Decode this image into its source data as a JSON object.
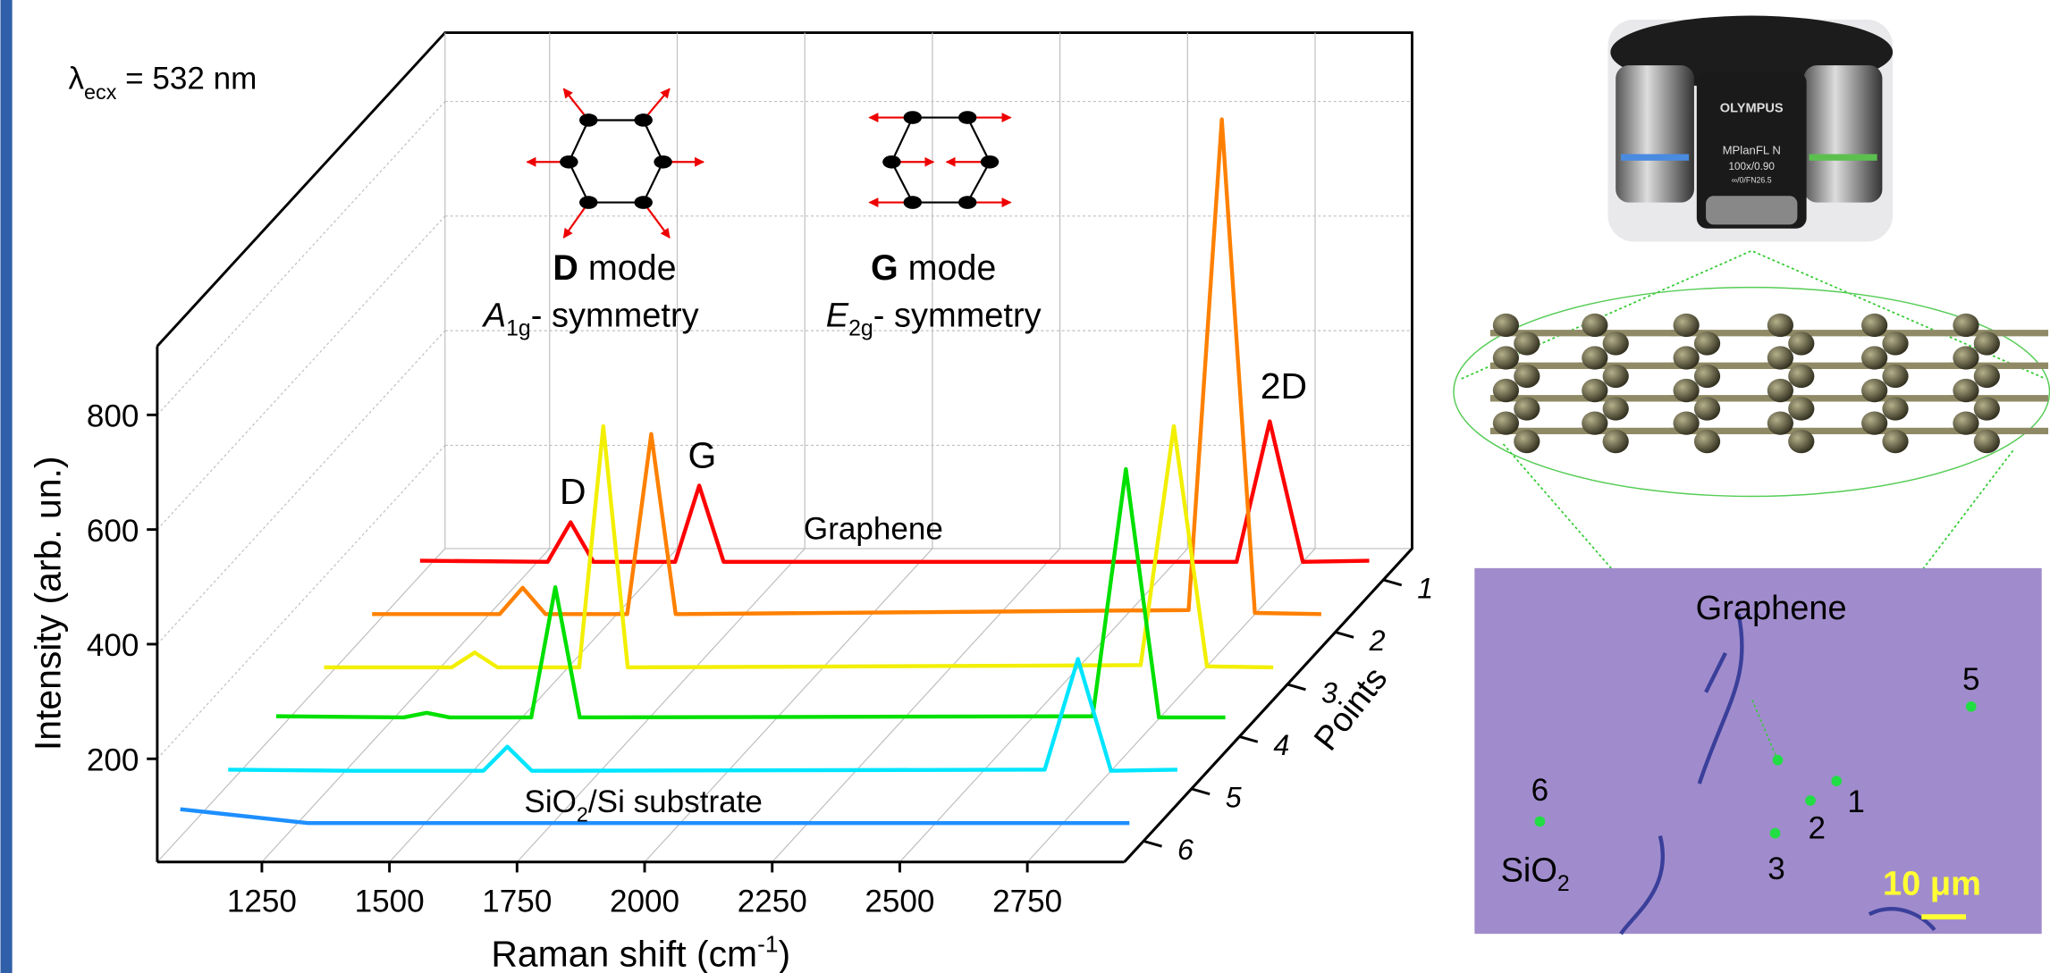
{
  "chart_data": {
    "type": "waterfall",
    "excitation": {
      "symbol": "λ",
      "sub": "ecx",
      "rest": " = 532 nm"
    },
    "xlabel": {
      "text": "Raman shift (cm",
      "sup": "-1",
      "end": ")"
    },
    "ylabel": "Intensity (arb. un.)",
    "zlabel": "Points",
    "xlim": [
      1045,
      2940
    ],
    "xticks": [
      1250,
      1500,
      1750,
      2000,
      2250,
      2500,
      2750
    ],
    "ylim": [
      20,
      920
    ],
    "yticks": [
      200,
      400,
      600,
      800
    ],
    "grid": true,
    "x": [
      1090,
      1340,
      1385,
      1430,
      1590,
      1637,
      1685,
      2690,
      2755,
      2820,
      2950
    ],
    "series": [
      {
        "name": "1",
        "color": "#ff0000",
        "values": [
          90,
          88,
          157,
          88,
          88,
          221,
          88,
          88,
          333,
          88,
          90
        ]
      },
      {
        "name": "2",
        "color": "#ff8000",
        "values": [
          88,
          88,
          134,
          88,
          88,
          402,
          88,
          95,
          951,
          90,
          88
        ]
      },
      {
        "name": "3",
        "color": "#f2ef00",
        "values": [
          86,
          86,
          112,
          86,
          86,
          507,
          86,
          90,
          507,
          88,
          86
        ]
      },
      {
        "name": "4",
        "color": "#00e000",
        "values": [
          92,
          90,
          98,
          90,
          90,
          317,
          90,
          92,
          523,
          90,
          90
        ]
      },
      {
        "name": "5",
        "color": "#00e5ff",
        "values": [
          90,
          88,
          88,
          88,
          88,
          130,
          88,
          90,
          283,
          88,
          90
        ]
      },
      {
        "name": "6",
        "color": "#1e8fff",
        "values": [
          112,
          88,
          88,
          88,
          88,
          88,
          88,
          88,
          88,
          88,
          88
        ]
      }
    ],
    "peak_labels": [
      "D",
      "G",
      "2D"
    ],
    "top_row_label": "Graphene",
    "bottom_row_label": {
      "main": "SiO",
      "sub": "2",
      "rest": "/Si substrate"
    },
    "modes": [
      {
        "letter": "D",
        "word": " mode",
        "sym": "A",
        "sym_sub": "1g",
        "sym_rest": "- symmetry"
      },
      {
        "letter": "G",
        "word": " mode",
        "sym": "E",
        "sym_sub": "2g",
        "sym_rest": "- symmetry"
      }
    ]
  },
  "inset": {
    "objective": [
      "OLYMPUS",
      "MPlanFL N",
      "100x/0.90",
      "∞/0/FN26.5"
    ],
    "micrograph": {
      "region_label": "Graphene",
      "substrate_label": {
        "main": "SiO",
        "sub": "2"
      },
      "points": [
        "5",
        "1",
        "2",
        "3",
        "6"
      ],
      "scale_bar": "10 μm"
    }
  }
}
